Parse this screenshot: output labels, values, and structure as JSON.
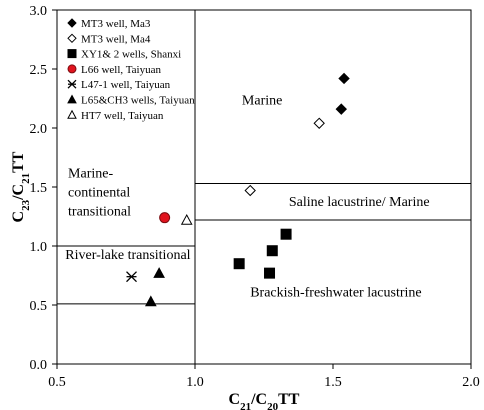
{
  "chart_data": {
    "type": "scatter",
    "xlabel_main": "C",
    "xlabel_sub1": "21",
    "xlabel_mid": "/C",
    "xlabel_sub2": "20",
    "xlabel_tail": "TT",
    "ylabel_main": "C",
    "ylabel_sub1": "23",
    "ylabel_mid": "/C",
    "ylabel_sub2": "21",
    "ylabel_tail": "TT",
    "xlim": [
      0.5,
      2.0
    ],
    "ylim": [
      0.0,
      3.0
    ],
    "xticks": [
      0.5,
      1.0,
      1.5,
      2.0
    ],
    "xtick_labels": [
      "0.5",
      "1.0",
      "1.5",
      "2.0"
    ],
    "yticks": [
      0.0,
      0.5,
      1.0,
      1.5,
      2.0,
      2.5,
      3.0
    ],
    "ytick_labels": [
      "0.0",
      "0.5",
      "1.0",
      "1.5",
      "2.0",
      "2.5",
      "3.0"
    ],
    "grid": false,
    "legend_position": "top-left",
    "series": [
      {
        "name": "MT3 well, Ma3",
        "marker": "diamond",
        "fill": "#000000",
        "points": [
          {
            "x": 1.54,
            "y": 2.42
          },
          {
            "x": 1.53,
            "y": 2.16
          }
        ]
      },
      {
        "name": "MT3 well, Ma4",
        "marker": "diamond-open",
        "fill": "none",
        "points": [
          {
            "x": 1.45,
            "y": 2.04
          },
          {
            "x": 1.2,
            "y": 1.47
          }
        ]
      },
      {
        "name": "XY1& 2 wells, Shanxi",
        "marker": "square",
        "fill": "#000000",
        "points": [
          {
            "x": 1.33,
            "y": 1.1
          },
          {
            "x": 1.28,
            "y": 0.96
          },
          {
            "x": 1.16,
            "y": 0.85
          },
          {
            "x": 1.27,
            "y": 0.77
          }
        ]
      },
      {
        "name": "L66 well, Taiyuan",
        "marker": "circle",
        "fill": "#e0141e",
        "points": [
          {
            "x": 0.89,
            "y": 1.24
          }
        ]
      },
      {
        "name": "L47-1 well, Taiyuan",
        "marker": "asterisk",
        "fill": "#000000",
        "points": [
          {
            "x": 0.77,
            "y": 0.74
          }
        ]
      },
      {
        "name": "L65&CH3 wells, Taiyuan",
        "marker": "triangle",
        "fill": "#000000",
        "points": [
          {
            "x": 0.87,
            "y": 0.77
          },
          {
            "x": 0.84,
            "y": 0.53
          }
        ]
      },
      {
        "name": "HT7 well, Taiyuan",
        "marker": "triangle-open",
        "fill": "none",
        "points": [
          {
            "x": 0.97,
            "y": 1.22
          }
        ]
      }
    ],
    "boundaries": [
      {
        "x1": 1.0,
        "y1": 0.0,
        "x2": 1.0,
        "y2": 3.0
      },
      {
        "x1": 0.5,
        "y1": 1.0,
        "x2": 1.0,
        "y2": 1.0
      },
      {
        "x1": 0.5,
        "y1": 0.51,
        "x2": 1.0,
        "y2": 0.51
      },
      {
        "x1": 1.0,
        "y1": 1.53,
        "x2": 2.0,
        "y2": 1.53
      },
      {
        "x1": 1.0,
        "y1": 1.22,
        "x2": 2.0,
        "y2": 1.22
      }
    ],
    "annotations": [
      {
        "name": "region-marine",
        "lines": [
          "Marine"
        ],
        "x": 1.17,
        "y": 2.2
      },
      {
        "name": "region-marine-continental-transitional",
        "lines": [
          "Marine-",
          "continental",
          "transitional"
        ],
        "x": 0.54,
        "y": 1.58
      },
      {
        "name": "region-saline-lacustrine-marine",
        "lines": [
          "Saline lacustrine/ Marine"
        ],
        "x": 1.34,
        "y": 1.34
      },
      {
        "name": "region-river-lake-transitional",
        "lines": [
          "River-lake transitional"
        ],
        "x": 0.53,
        "y": 0.89
      },
      {
        "name": "region-brackish-freshwater-lacustrine",
        "lines": [
          "Brackish-freshwater lacustrine"
        ],
        "x": 1.2,
        "y": 0.57
      }
    ]
  }
}
